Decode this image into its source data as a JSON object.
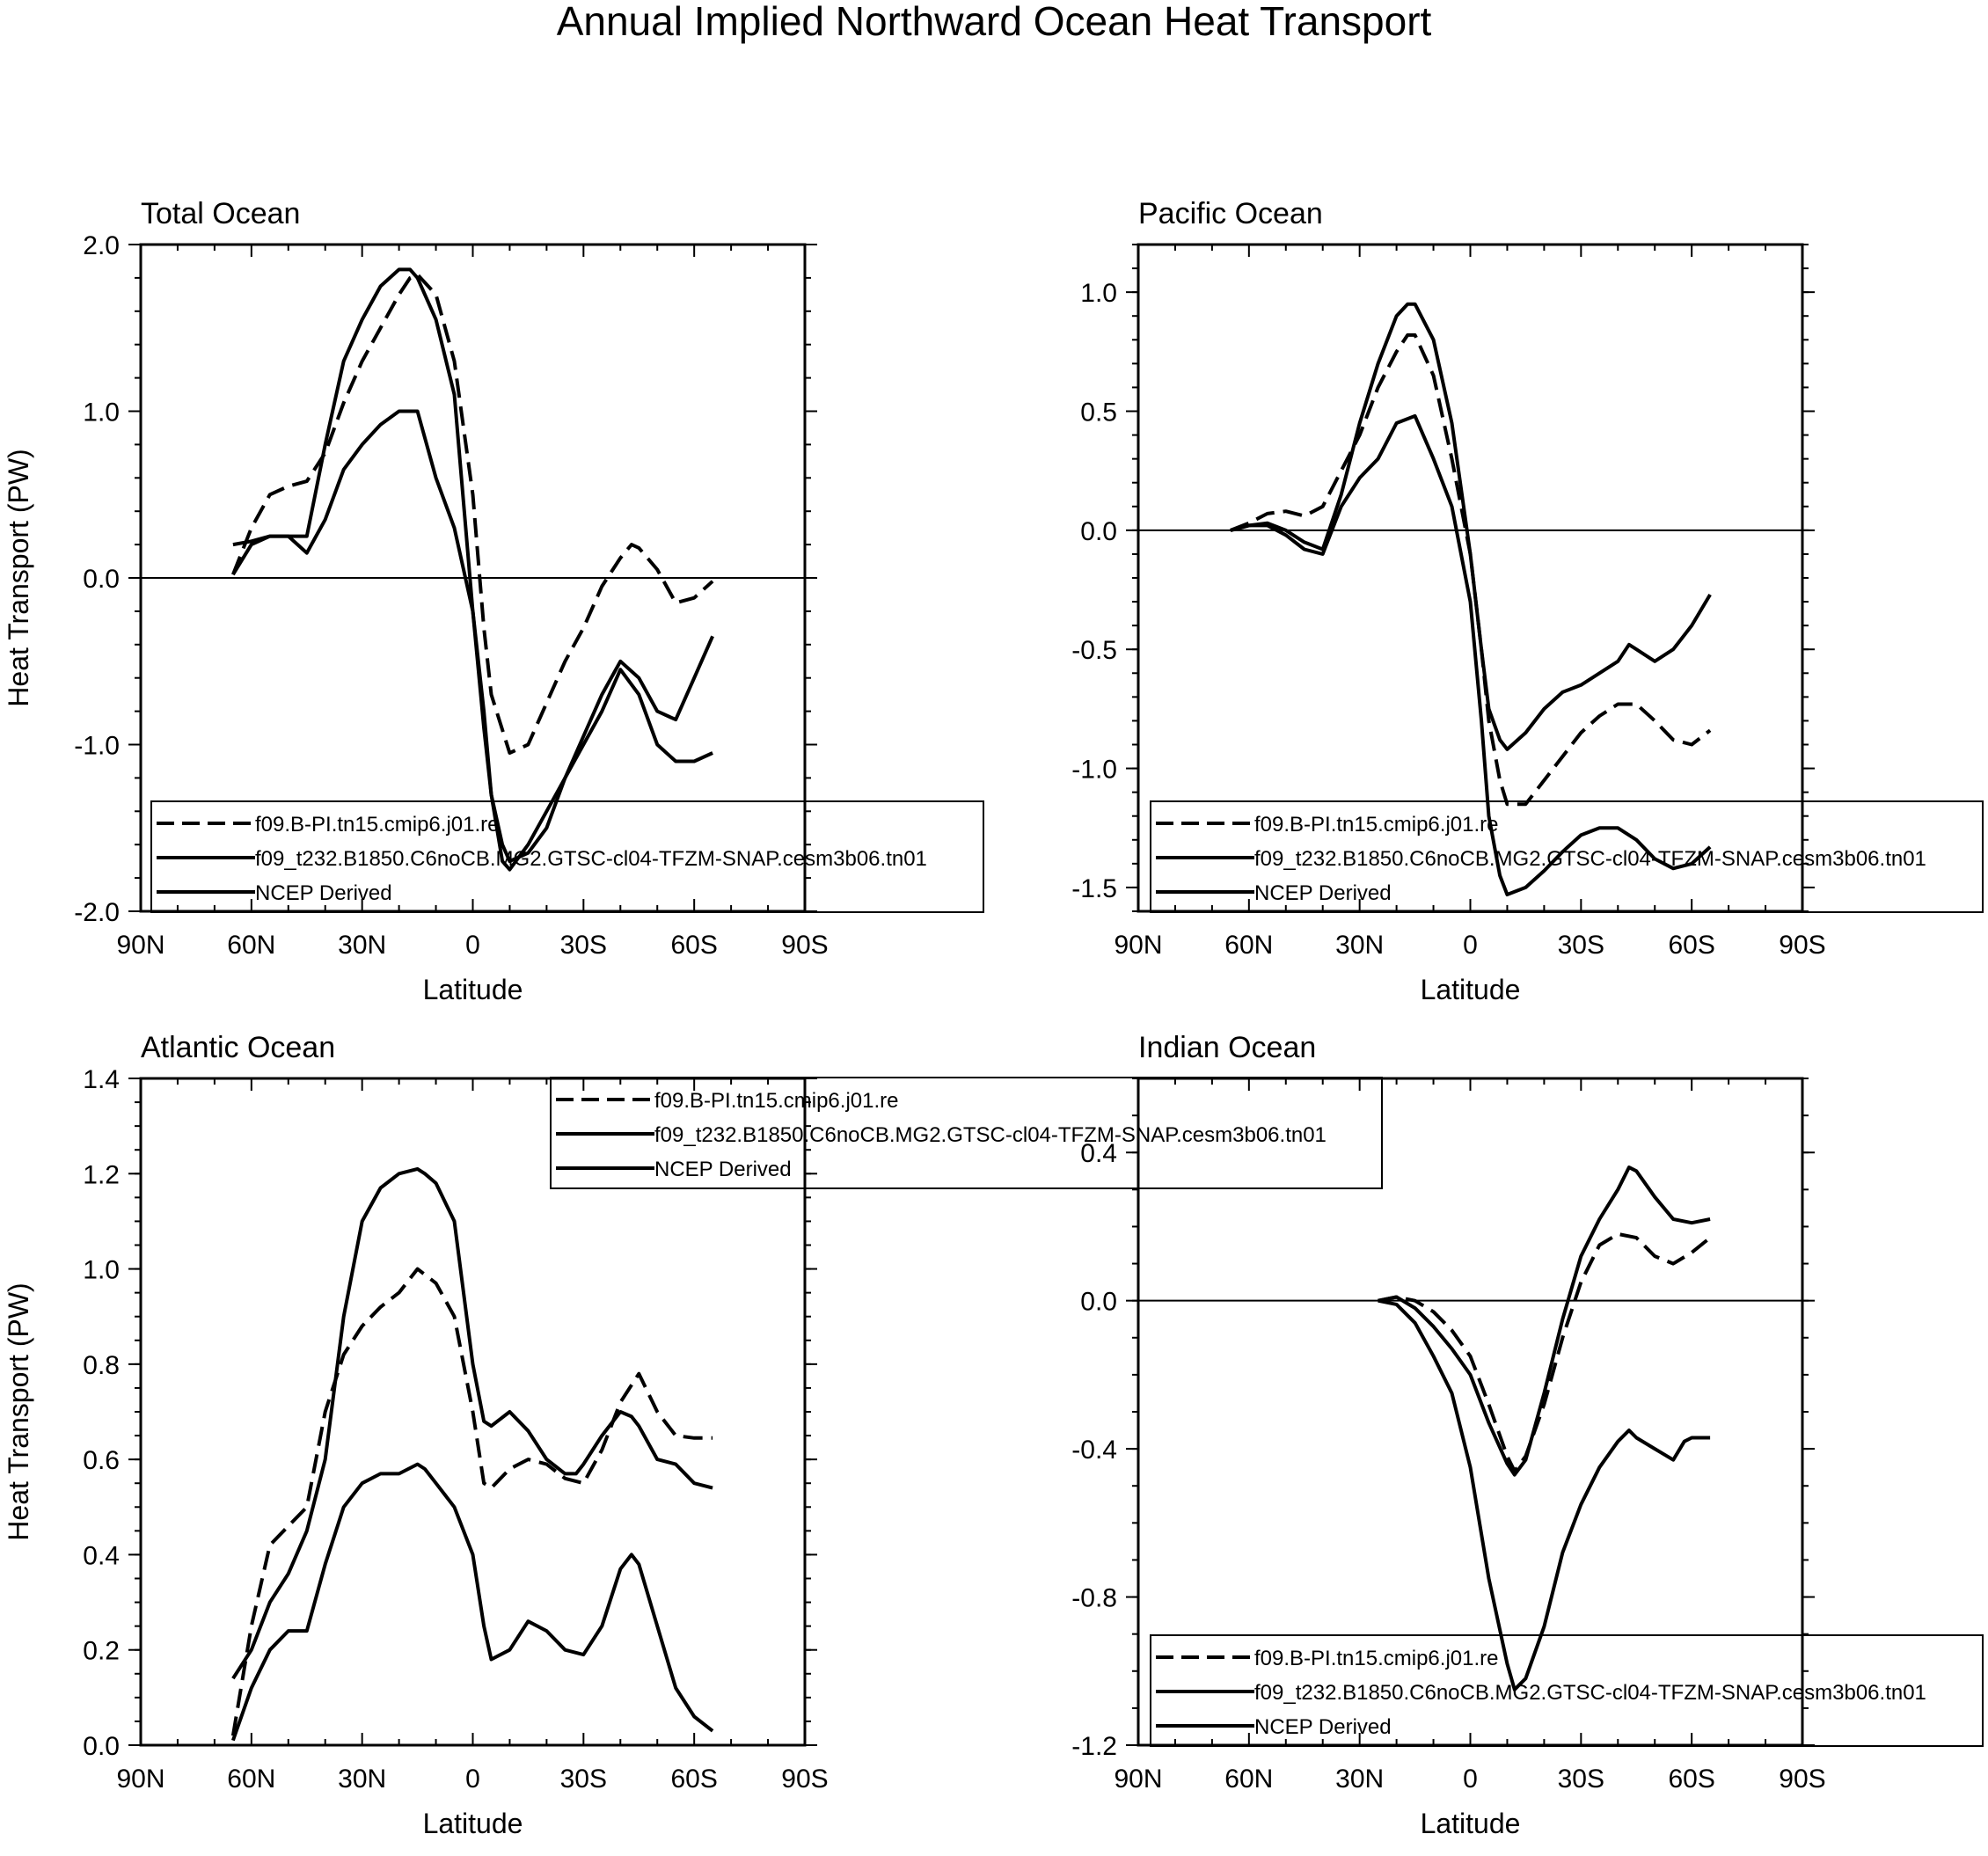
{
  "figure": {
    "title": "Annual Implied Northward Ocean Heat Transport"
  },
  "colors": {
    "line": "#000000",
    "background": "#ffffff"
  },
  "chart_data": [
    {
      "id": "total",
      "type": "line",
      "title": "Total Ocean",
      "xlabel": "Latitude",
      "ylabel": "Heat Transport (PW)",
      "xlim": [
        90,
        -90
      ],
      "ylim": [
        -2.0,
        2.0
      ],
      "xticks": [
        90,
        60,
        30,
        0,
        -30,
        -60,
        -90
      ],
      "xtick_labels": [
        "90N",
        "60N",
        "30N",
        "0",
        "30S",
        "60S",
        "90S"
      ],
      "yticks": [
        2.0,
        1.0,
        0.0,
        -1.0,
        -2.0
      ],
      "ytick_labels": [
        "2.0",
        "1.0",
        "0.0",
        "-1.0",
        "-2.0"
      ],
      "ytick_minor": 0.2,
      "legend": {
        "position": "bottom-right",
        "entries": [
          "f09.B-PI.tn15.cmip6.j01.re",
          "f09_t232.B1850.C6noCB.MG2.GTSC-cl04-TFZM-SNAP.cesm3b06.tn01",
          "NCEP Derived"
        ]
      },
      "series": [
        {
          "name": "f09.B-PI.tn15.cmip6.j01.re",
          "style": "dashed",
          "x": [
            65,
            60,
            55,
            50,
            45,
            40,
            35,
            30,
            25,
            20,
            17,
            15,
            10,
            5,
            0,
            -3,
            -5,
            -10,
            -15,
            -20,
            -25,
            -30,
            -35,
            -40,
            -43,
            -45,
            -50,
            -55,
            -60,
            -65
          ],
          "y": [
            0.02,
            0.3,
            0.5,
            0.55,
            0.58,
            0.75,
            1.05,
            1.3,
            1.5,
            1.7,
            1.8,
            1.82,
            1.7,
            1.3,
            0.5,
            -0.3,
            -0.7,
            -1.05,
            -1.0,
            -0.75,
            -0.5,
            -0.3,
            -0.05,
            0.12,
            0.2,
            0.18,
            0.05,
            -0.15,
            -0.12,
            -0.02
          ]
        },
        {
          "name": "f09_t232.B1850.C6noCB.MG2.GTSC-cl04-TFZM-SNAP.cesm3b06.tn01",
          "style": "solid",
          "x": [
            65,
            60,
            55,
            50,
            45,
            40,
            35,
            30,
            25,
            20,
            17,
            15,
            10,
            5,
            0,
            -3,
            -5,
            -8,
            -10,
            -15,
            -20,
            -25,
            -30,
            -35,
            -40,
            -45,
            -50,
            -55,
            -60,
            -65
          ],
          "y": [
            0.02,
            0.2,
            0.25,
            0.25,
            0.25,
            0.8,
            1.3,
            1.55,
            1.75,
            1.85,
            1.85,
            1.8,
            1.55,
            1.1,
            -0.2,
            -0.9,
            -1.3,
            -1.6,
            -1.7,
            -1.65,
            -1.5,
            -1.2,
            -0.95,
            -0.7,
            -0.5,
            -0.6,
            -0.8,
            -0.85,
            -0.6,
            -0.35
          ]
        },
        {
          "name": "NCEP Derived",
          "style": "solid",
          "x": [
            65,
            60,
            55,
            50,
            45,
            40,
            35,
            30,
            25,
            20,
            15,
            10,
            5,
            0,
            -3,
            -5,
            -8,
            -10,
            -15,
            -20,
            -25,
            -30,
            -35,
            -40,
            -45,
            -50,
            -55,
            -60,
            -65
          ],
          "y": [
            0.2,
            0.22,
            0.25,
            0.25,
            0.15,
            0.35,
            0.65,
            0.8,
            0.92,
            1.0,
            1.0,
            0.6,
            0.3,
            -0.2,
            -0.8,
            -1.3,
            -1.7,
            -1.75,
            -1.6,
            -1.4,
            -1.2,
            -1.0,
            -0.8,
            -0.55,
            -0.7,
            -1.0,
            -1.1,
            -1.1,
            -1.05
          ]
        }
      ]
    },
    {
      "id": "pacific",
      "type": "line",
      "title": "Pacific Ocean",
      "xlabel": "Latitude",
      "ylabel": "",
      "xlim": [
        90,
        -90
      ],
      "ylim": [
        -1.6,
        1.2
      ],
      "xticks": [
        90,
        60,
        30,
        0,
        -30,
        -60,
        -90
      ],
      "xtick_labels": [
        "90N",
        "60N",
        "30N",
        "0",
        "30S",
        "60S",
        "90S"
      ],
      "yticks": [
        1.0,
        0.5,
        0.0,
        -0.5,
        -1.0,
        -1.5
      ],
      "ytick_labels": [
        "1.0",
        "0.5",
        "0.0",
        "-0.5",
        "-1.0",
        "-1.5"
      ],
      "ytick_minor": 0.1,
      "legend": {
        "position": "bottom-right",
        "entries": [
          "f09.B-PI.tn15.cmip6.j01.re",
          "f09_t232.B1850.C6noCB.MG2.GTSC-cl04-TFZM-SNAP.cesm3b06.tn01",
          "NCEP Derived"
        ]
      },
      "series": [
        {
          "name": "f09.B-PI.tn15.cmip6.j01.re",
          "style": "dashed",
          "x": [
            65,
            60,
            55,
            50,
            45,
            40,
            35,
            30,
            25,
            20,
            17,
            15,
            10,
            5,
            0,
            -3,
            -5,
            -8,
            -10,
            -15,
            -20,
            -25,
            -30,
            -35,
            -40,
            -45,
            -50,
            -55,
            -60,
            -65
          ],
          "y": [
            0.0,
            0.03,
            0.07,
            0.08,
            0.06,
            0.1,
            0.25,
            0.4,
            0.6,
            0.75,
            0.82,
            0.82,
            0.65,
            0.3,
            -0.1,
            -0.5,
            -0.8,
            -1.05,
            -1.15,
            -1.15,
            -1.05,
            -0.95,
            -0.85,
            -0.78,
            -0.73,
            -0.73,
            -0.8,
            -0.88,
            -0.9,
            -0.84
          ]
        },
        {
          "name": "f09_t232.B1850.C6noCB.MG2.GTSC-cl04-TFZM-SNAP.cesm3b06.tn01",
          "style": "solid",
          "x": [
            65,
            60,
            55,
            50,
            45,
            40,
            35,
            30,
            25,
            20,
            17,
            15,
            10,
            5,
            0,
            -3,
            -5,
            -8,
            -10,
            -15,
            -20,
            -25,
            -30,
            -35,
            -40,
            -43,
            -45,
            -50,
            -55,
            -60,
            -65
          ],
          "y": [
            0.0,
            0.02,
            0.03,
            0.0,
            -0.05,
            -0.08,
            0.15,
            0.45,
            0.7,
            0.9,
            0.95,
            0.95,
            0.8,
            0.45,
            -0.1,
            -0.5,
            -0.75,
            -0.88,
            -0.92,
            -0.85,
            -0.75,
            -0.68,
            -0.65,
            -0.6,
            -0.55,
            -0.48,
            -0.5,
            -0.55,
            -0.5,
            -0.4,
            -0.27
          ]
        },
        {
          "name": "NCEP Derived",
          "style": "solid",
          "x": [
            65,
            60,
            55,
            50,
            45,
            40,
            35,
            30,
            25,
            20,
            15,
            10,
            5,
            0,
            -3,
            -5,
            -8,
            -10,
            -15,
            -20,
            -25,
            -30,
            -35,
            -40,
            -45,
            -50,
            -55,
            -60,
            -65
          ],
          "y": [
            0.0,
            0.02,
            0.02,
            -0.02,
            -0.08,
            -0.1,
            0.1,
            0.22,
            0.3,
            0.45,
            0.48,
            0.3,
            0.1,
            -0.3,
            -0.8,
            -1.2,
            -1.45,
            -1.53,
            -1.5,
            -1.43,
            -1.35,
            -1.28,
            -1.25,
            -1.25,
            -1.3,
            -1.38,
            -1.42,
            -1.4,
            -1.33
          ]
        }
      ]
    },
    {
      "id": "atlantic",
      "type": "line",
      "title": "Atlantic Ocean",
      "xlabel": "Latitude",
      "ylabel": "Heat Transport (PW)",
      "xlim": [
        90,
        -90
      ],
      "ylim": [
        0.0,
        1.4
      ],
      "xticks": [
        90,
        60,
        30,
        0,
        -30,
        -60,
        -90
      ],
      "xtick_labels": [
        "90N",
        "60N",
        "30N",
        "0",
        "30S",
        "60S",
        "90S"
      ],
      "yticks": [
        1.4,
        1.2,
        1.0,
        0.8,
        0.6,
        0.4,
        0.2,
        0.0
      ],
      "ytick_labels": [
        "1.4",
        "1.2",
        "1.0",
        "0.8",
        "0.6",
        "0.4",
        "0.2",
        "0.0"
      ],
      "ytick_minor": 0.05,
      "legend": {
        "position": "top-right",
        "entries": [
          "f09.B-PI.tn15.cmip6.j01.re",
          "f09_t232.B1850.C6noCB.MG2.GTSC-cl04-TFZM-SNAP.cesm3b06.tn01",
          "NCEP Derived"
        ]
      },
      "series": [
        {
          "name": "f09.B-PI.tn15.cmip6.j01.re",
          "style": "dashed",
          "x": [
            65,
            60,
            55,
            50,
            45,
            40,
            35,
            30,
            25,
            20,
            15,
            10,
            5,
            0,
            -3,
            -5,
            -10,
            -15,
            -20,
            -25,
            -30,
            -35,
            -40,
            -45,
            -50,
            -55,
            -60,
            -65
          ],
          "y": [
            0.02,
            0.25,
            0.42,
            0.46,
            0.5,
            0.7,
            0.82,
            0.88,
            0.92,
            0.95,
            1.0,
            0.97,
            0.9,
            0.7,
            0.55,
            0.54,
            0.58,
            0.6,
            0.59,
            0.56,
            0.55,
            0.62,
            0.72,
            0.78,
            0.7,
            0.65,
            0.645,
            0.645
          ]
        },
        {
          "name": "f09_t232.B1850.C6noCB.MG2.GTSC-cl04-TFZM-SNAP.cesm3b06.tn01",
          "style": "solid",
          "x": [
            65,
            60,
            55,
            50,
            45,
            40,
            35,
            30,
            25,
            20,
            15,
            13,
            10,
            5,
            0,
            -3,
            -5,
            -10,
            -15,
            -20,
            -25,
            -28,
            -30,
            -35,
            -40,
            -43,
            -45,
            -50,
            -55,
            -60,
            -65
          ],
          "y": [
            0.14,
            0.2,
            0.3,
            0.36,
            0.45,
            0.6,
            0.9,
            1.1,
            1.17,
            1.2,
            1.21,
            1.2,
            1.18,
            1.1,
            0.8,
            0.68,
            0.67,
            0.7,
            0.66,
            0.6,
            0.57,
            0.57,
            0.59,
            0.65,
            0.7,
            0.69,
            0.67,
            0.6,
            0.59,
            0.55,
            0.54
          ]
        },
        {
          "name": "NCEP Derived",
          "style": "solid",
          "x": [
            65,
            60,
            55,
            50,
            45,
            40,
            35,
            30,
            25,
            20,
            15,
            13,
            10,
            5,
            0,
            -3,
            -5,
            -10,
            -15,
            -20,
            -25,
            -30,
            -35,
            -40,
            -43,
            -45,
            -50,
            -55,
            -60,
            -65
          ],
          "y": [
            0.01,
            0.12,
            0.2,
            0.24,
            0.24,
            0.38,
            0.5,
            0.55,
            0.57,
            0.57,
            0.59,
            0.58,
            0.55,
            0.5,
            0.4,
            0.25,
            0.18,
            0.2,
            0.26,
            0.24,
            0.2,
            0.19,
            0.25,
            0.37,
            0.4,
            0.38,
            0.25,
            0.12,
            0.06,
            0.03
          ]
        }
      ]
    },
    {
      "id": "indian",
      "type": "line",
      "title": "Indian Ocean",
      "xlabel": "Latitude",
      "ylabel": "",
      "xlim": [
        90,
        -90
      ],
      "ylim": [
        -1.2,
        0.6
      ],
      "xticks": [
        90,
        60,
        30,
        0,
        -30,
        -60,
        -90
      ],
      "xtick_labels": [
        "90N",
        "60N",
        "30N",
        "0",
        "30S",
        "60S",
        "90S"
      ],
      "yticks": [
        0.4,
        0.0,
        -0.4,
        -0.8,
        -1.2
      ],
      "ytick_labels": [
        "0.4",
        "0.0",
        "-0.4",
        "-0.8",
        "-1.2"
      ],
      "ytick_minor": 0.1,
      "legend": {
        "position": "bottom-right",
        "entries": [
          "f09.B-PI.tn15.cmip6.j01.re",
          "f09_t232.B1850.C6noCB.MG2.GTSC-cl04-TFZM-SNAP.cesm3b06.tn01",
          "NCEP Derived"
        ]
      },
      "series": [
        {
          "name": "f09.B-PI.tn15.cmip6.j01.re",
          "style": "dashed",
          "x": [
            25,
            20,
            15,
            10,
            5,
            0,
            -5,
            -10,
            -12,
            -15,
            -20,
            -25,
            -30,
            -35,
            -40,
            -45,
            -50,
            -55,
            -60,
            -65
          ],
          "y": [
            0.0,
            0.01,
            0.0,
            -0.03,
            -0.08,
            -0.15,
            -0.28,
            -0.42,
            -0.46,
            -0.42,
            -0.28,
            -0.1,
            0.05,
            0.15,
            0.18,
            0.17,
            0.12,
            0.1,
            0.13,
            0.17
          ]
        },
        {
          "name": "f09_t232.B1850.C6noCB.MG2.GTSC-cl04-TFZM-SNAP.cesm3b06.tn01",
          "style": "solid",
          "x": [
            25,
            20,
            15,
            10,
            5,
            0,
            -5,
            -10,
            -12,
            -15,
            -20,
            -25,
            -30,
            -35,
            -40,
            -43,
            -45,
            -50,
            -55,
            -60,
            -65
          ],
          "y": [
            0.0,
            0.01,
            -0.02,
            -0.07,
            -0.13,
            -0.2,
            -0.33,
            -0.44,
            -0.47,
            -0.43,
            -0.25,
            -0.05,
            0.12,
            0.22,
            0.3,
            0.36,
            0.35,
            0.28,
            0.22,
            0.21,
            0.22
          ]
        },
        {
          "name": "NCEP Derived",
          "style": "solid",
          "x": [
            25,
            20,
            15,
            10,
            5,
            0,
            -5,
            -10,
            -12,
            -15,
            -20,
            -25,
            -30,
            -35,
            -40,
            -43,
            -45,
            -50,
            -55,
            -58,
            -60,
            -65
          ],
          "y": [
            0.0,
            -0.01,
            -0.06,
            -0.15,
            -0.25,
            -0.45,
            -0.75,
            -0.98,
            -1.05,
            -1.02,
            -0.88,
            -0.68,
            -0.55,
            -0.45,
            -0.38,
            -0.35,
            -0.37,
            -0.4,
            -0.43,
            -0.38,
            -0.37,
            -0.37
          ]
        }
      ]
    }
  ]
}
